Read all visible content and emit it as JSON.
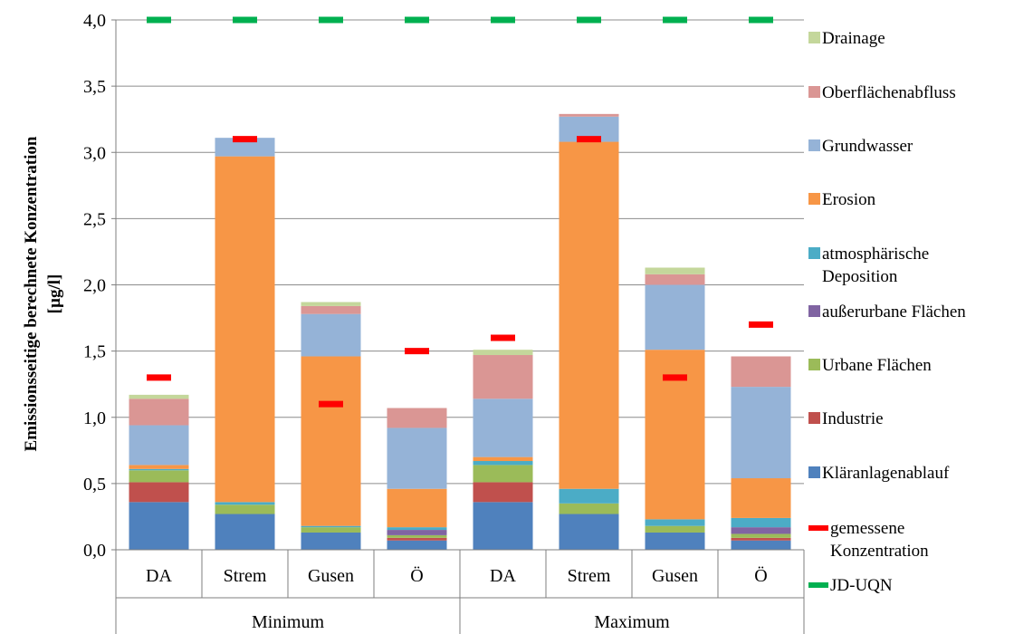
{
  "chart_data": {
    "type": "bar",
    "stacked": true,
    "ylabel": "Emissionsseitige berechnete Konzentration [µg/l]",
    "ylim": [
      0,
      4
    ],
    "ytick_step": 0.5,
    "yticks": [
      "0,0",
      "0,5",
      "1,0",
      "1,5",
      "2,0",
      "2,5",
      "3,0",
      "3,5",
      "4,0"
    ],
    "grid": true,
    "legend_position": "right",
    "groups": [
      {
        "label": "Minimum",
        "categories": [
          "DA",
          "Strem",
          "Gusen",
          "Ö"
        ]
      },
      {
        "label": "Maximum",
        "categories": [
          "DA",
          "Strem",
          "Gusen",
          "Ö"
        ]
      }
    ],
    "series": [
      {
        "name": "Kläranlagenablauf",
        "color": "#4F81BD",
        "values": [
          0.36,
          0.27,
          0.13,
          0.07,
          0.36,
          0.27,
          0.13,
          0.07
        ]
      },
      {
        "name": "Industrie",
        "color": "#C0504D",
        "values": [
          0.15,
          0.0,
          0.0,
          0.02,
          0.15,
          0.0,
          0.0,
          0.02
        ]
      },
      {
        "name": "Urbane Flächen",
        "color": "#9BBB59",
        "values": [
          0.09,
          0.07,
          0.04,
          0.02,
          0.13,
          0.08,
          0.05,
          0.03
        ]
      },
      {
        "name": "außerurbane Flächen",
        "color": "#8064A2",
        "values": [
          0.0,
          0.0,
          0.0,
          0.04,
          0.0,
          0.0,
          0.0,
          0.05
        ]
      },
      {
        "name": "atmosphärische Deposition",
        "color": "#4BACC6",
        "values": [
          0.01,
          0.02,
          0.01,
          0.02,
          0.03,
          0.11,
          0.05,
          0.07
        ]
      },
      {
        "name": "Erosion",
        "color": "#F79646",
        "values": [
          0.03,
          2.61,
          1.28,
          0.29,
          0.03,
          2.62,
          1.28,
          0.3
        ]
      },
      {
        "name": "Grundwasser",
        "color": "#95B3D7",
        "values": [
          0.3,
          0.14,
          0.32,
          0.46,
          0.44,
          0.19,
          0.49,
          0.69
        ]
      },
      {
        "name": "Oberflächenabfluss",
        "color": "#DA9694",
        "values": [
          0.2,
          0.0,
          0.06,
          0.15,
          0.33,
          0.02,
          0.08,
          0.23
        ]
      },
      {
        "name": "Drainage",
        "color": "#C4D79B",
        "values": [
          0.03,
          0.0,
          0.03,
          0.0,
          0.04,
          0.0,
          0.05,
          0.0
        ]
      }
    ],
    "markers": [
      {
        "name": "gemessene Konzentration",
        "color": "#FF0000",
        "values": [
          1.3,
          3.1,
          1.1,
          1.5,
          1.6,
          3.1,
          1.3,
          1.7
        ]
      },
      {
        "name": "JD-UQN",
        "color": "#00B050",
        "values": [
          4.0,
          4.0,
          4.0,
          4.0,
          4.0,
          4.0,
          4.0,
          4.0
        ]
      }
    ]
  }
}
